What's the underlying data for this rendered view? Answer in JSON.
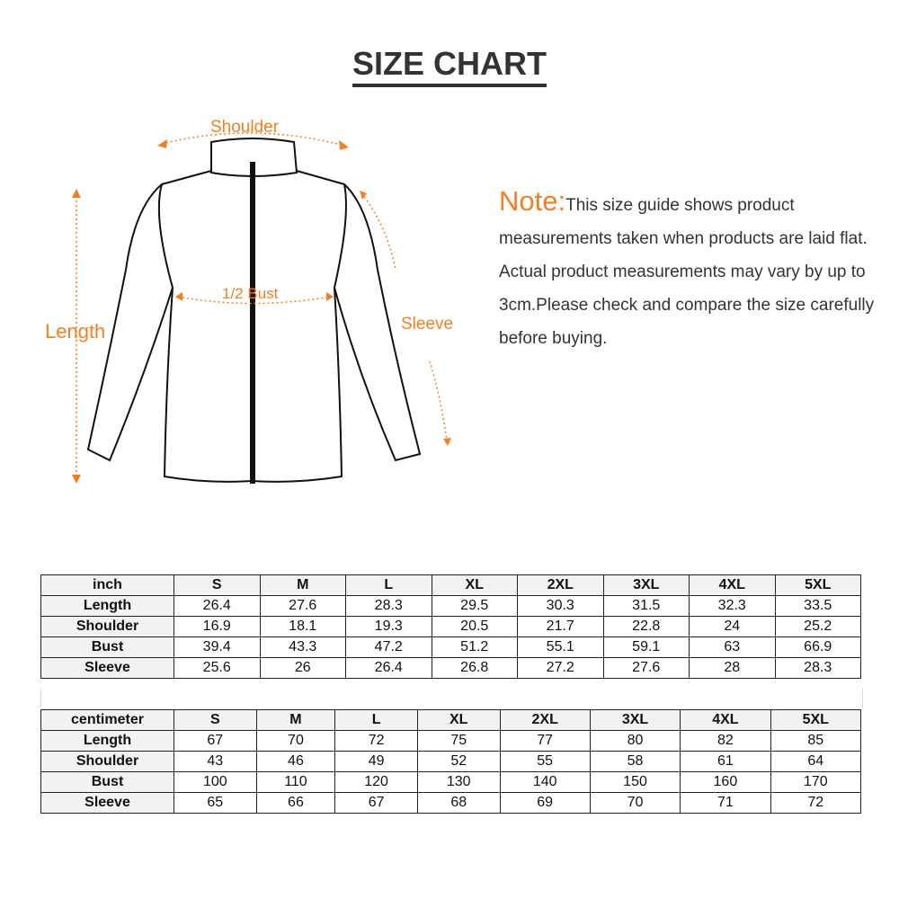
{
  "title": "SIZE CHART",
  "diagram": {
    "shoulder": "Shoulder",
    "bust": "1/2 Bust",
    "length": "Length",
    "sleeve": "Sleeve",
    "accent": "#f47f20"
  },
  "note": {
    "heading": "Note:",
    "text": "This size guide shows product measurements taken when products are laid flat. Actual product measurements may vary by up to 3cm.Please check and compare the size carefully before buying."
  },
  "sizes": [
    "S",
    "M",
    "L",
    "XL",
    "2XL",
    "3XL",
    "4XL",
    "5XL"
  ],
  "inch": {
    "unit": "inch",
    "rows": [
      {
        "label": "Length",
        "values": [
          "26.4",
          "27.6",
          "28.3",
          "29.5",
          "30.3",
          "31.5",
          "32.3",
          "33.5"
        ]
      },
      {
        "label": "Shoulder",
        "values": [
          "16.9",
          "18.1",
          "19.3",
          "20.5",
          "21.7",
          "22.8",
          "24",
          "25.2"
        ]
      },
      {
        "label": "Bust",
        "values": [
          "39.4",
          "43.3",
          "47.2",
          "51.2",
          "55.1",
          "59.1",
          "63",
          "66.9"
        ]
      },
      {
        "label": "Sleeve",
        "values": [
          "25.6",
          "26",
          "26.4",
          "26.8",
          "27.2",
          "27.6",
          "28",
          "28.3"
        ]
      }
    ]
  },
  "centimeter": {
    "unit": "centimeter",
    "rows": [
      {
        "label": "Length",
        "values": [
          "67",
          "70",
          "72",
          "75",
          "77",
          "80",
          "82",
          "85"
        ]
      },
      {
        "label": "Shoulder",
        "values": [
          "43",
          "46",
          "49",
          "52",
          "55",
          "58",
          "61",
          "64"
        ]
      },
      {
        "label": "Bust",
        "values": [
          "100",
          "110",
          "120",
          "130",
          "140",
          "150",
          "160",
          "170"
        ]
      },
      {
        "label": "Sleeve",
        "values": [
          "65",
          "66",
          "67",
          "68",
          "69",
          "70",
          "71",
          "72"
        ]
      }
    ]
  }
}
